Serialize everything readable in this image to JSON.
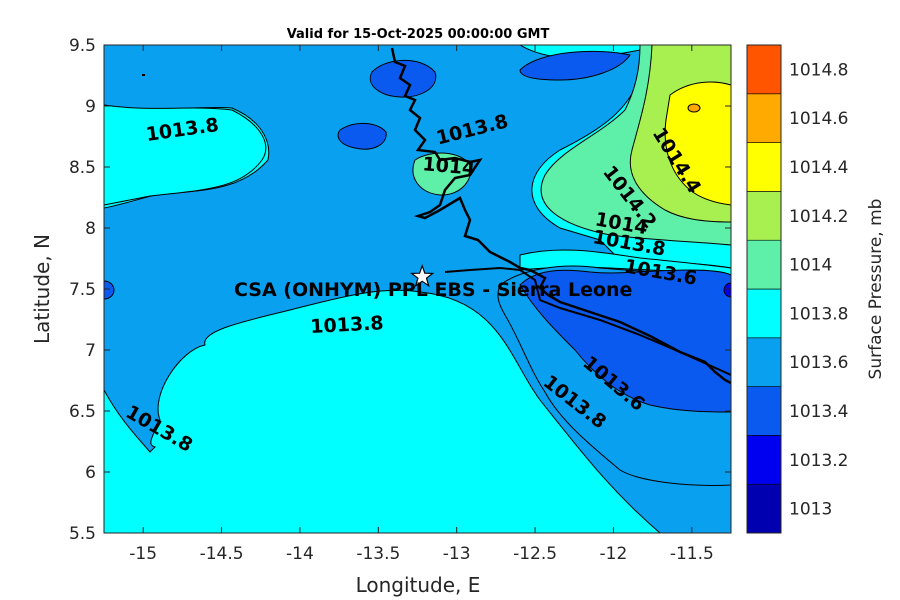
{
  "chart_data": {
    "type": "contour",
    "title": "Valid for 15-Oct-2025 00:00:00 GMT",
    "xlabel": "Longitude, E",
    "ylabel": "Latitude, N",
    "xlim": [
      -15.25,
      -11.25
    ],
    "ylim": [
      5.5,
      9.5
    ],
    "xticks": [
      -15,
      -14.5,
      -14,
      -13.5,
      -13,
      -12.5,
      -12,
      -11.5
    ],
    "yticks": [
      5.5,
      6,
      6.5,
      7,
      7.5,
      8,
      8.5,
      9,
      9.5
    ],
    "colorbar": {
      "label": "Surface Pressure, mb",
      "levels": [
        1013,
        1013.2,
        1013.4,
        1013.6,
        1013.8,
        1014,
        1014.2,
        1014.4,
        1014.6,
        1014.8
      ],
      "colors": [
        "#0000b0",
        "#0000f0",
        "#0a5af0",
        "#0aa0f0",
        "#00ffff",
        "#5ef0a8",
        "#a8f050",
        "#ffff00",
        "#ffaa00",
        "#ff5500"
      ]
    },
    "contour_labels": [
      {
        "text": "1013.8",
        "lon": -14.75,
        "lat": 8.8,
        "angle": -8
      },
      {
        "text": "1013.8",
        "lon": -12.9,
        "lat": 8.8,
        "angle": -14
      },
      {
        "text": "1014",
        "lon": -13.05,
        "lat": 8.5,
        "angle": 5
      },
      {
        "text": "1014.4",
        "lon": -11.6,
        "lat": 8.55,
        "angle": 58
      },
      {
        "text": "1014.2",
        "lon": -11.9,
        "lat": 8.25,
        "angle": 52
      },
      {
        "text": "1014",
        "lon": -11.95,
        "lat": 8.03,
        "angle": 10
      },
      {
        "text": "1013.8",
        "lon": -11.9,
        "lat": 7.87,
        "angle": 10
      },
      {
        "text": "1013.6",
        "lon": -11.7,
        "lat": 7.63,
        "angle": 10
      },
      {
        "text": "1013.8",
        "lon": -13.7,
        "lat": 7.2,
        "angle": -3
      },
      {
        "text": "1013.6",
        "lon": -12.0,
        "lat": 6.72,
        "angle": 40
      },
      {
        "text": "1013.8",
        "lon": -12.25,
        "lat": 6.57,
        "angle": 38
      },
      {
        "text": "1013.8",
        "lon": -14.9,
        "lat": 6.35,
        "angle": 30
      }
    ],
    "station": {
      "name": "CSA (ONHYM) PPL EBS  - Sierra Leone",
      "lon": -13.22,
      "lat": 7.6
    }
  }
}
